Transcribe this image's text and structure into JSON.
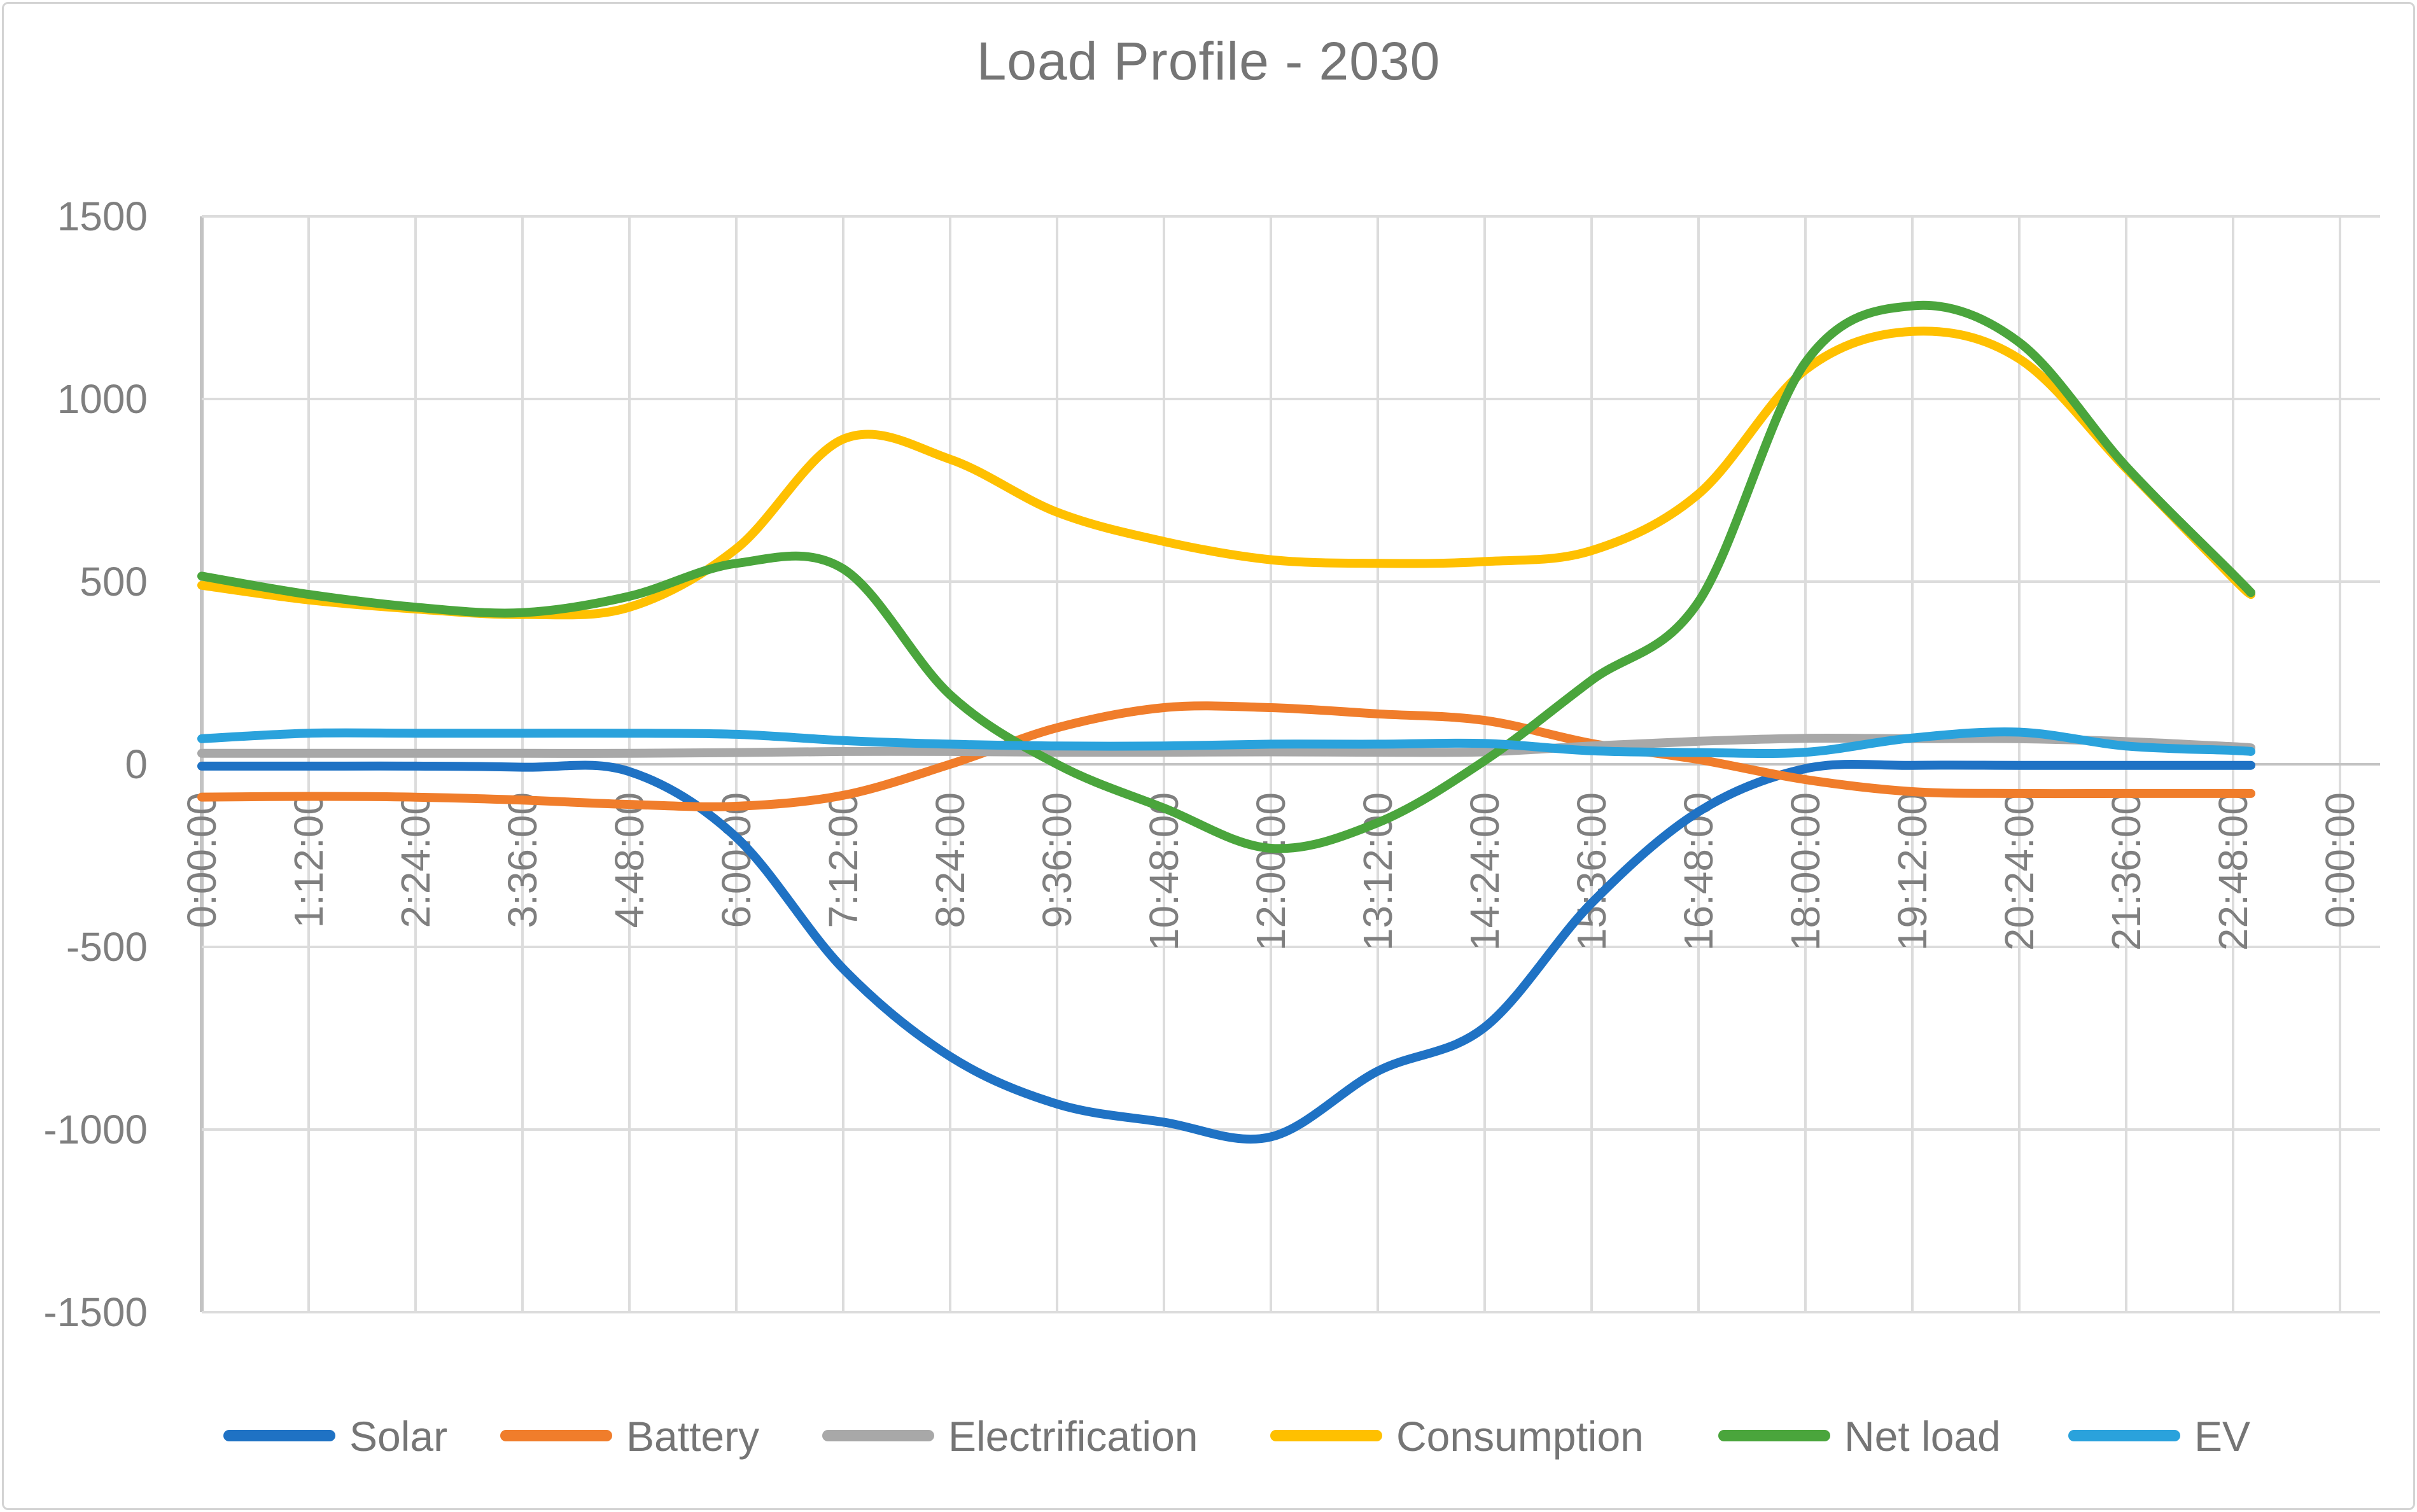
{
  "chart_data": {
    "type": "line",
    "title": "Load Profile - 2030",
    "xlabel": "",
    "ylabel": "",
    "ylim": [
      -1500,
      1500
    ],
    "ytick_interval": 500,
    "ytick_labels": [
      "1500",
      "1000",
      "500",
      "0",
      "-500",
      "-1000",
      "-1500"
    ],
    "grid": "on",
    "legend_position": "bottom",
    "x_tick_labels_rotation_deg": 90,
    "categories": [
      "0:00:00",
      "1:12:00",
      "2:24:00",
      "3:36:00",
      "4:48:00",
      "6:00:00",
      "7:12:00",
      "8:24:00",
      "9:36:00",
      "10:48:00",
      "12:00:00",
      "13:12:00",
      "14:24:00",
      "15:36:00",
      "16:48:00",
      "18:00:00",
      "19:12:00",
      "20:24:00",
      "21:36:00",
      "22:48:00",
      "0:00:00"
    ],
    "sample_hours": [
      0,
      1.2,
      2.4,
      3.6,
      4.8,
      6,
      7.2,
      8.4,
      9.6,
      10.8,
      12,
      13.2,
      14.4,
      15.6,
      16.8,
      18,
      19.2,
      20.4,
      21.6,
      22.8,
      23
    ],
    "series": [
      {
        "name": "Solar",
        "color": "#1f72c4",
        "values": [
          -5,
          -5,
          -5,
          -8,
          -20,
          -200,
          -560,
          -800,
          -930,
          -980,
          -1020,
          -840,
          -720,
          -380,
          -130,
          -12,
          -3,
          -3,
          -3,
          -3,
          -3
        ]
      },
      {
        "name": "Battery",
        "color": "#f07d2b",
        "values": [
          -90,
          -88,
          -90,
          -98,
          -110,
          -115,
          -85,
          0,
          100,
          155,
          155,
          138,
          120,
          57,
          13,
          -42,
          -75,
          -80,
          -80,
          -80,
          -80
        ]
      },
      {
        "name": "Electrification",
        "color": "#a8a8a8",
        "values": [
          30,
          30,
          30,
          30,
          30,
          32,
          35,
          35,
          33,
          33,
          34,
          33,
          34,
          50,
          63,
          71,
          70,
          70,
          62,
          48,
          45
        ]
      },
      {
        "name": "Consumption",
        "color": "#ffc000",
        "values": [
          490,
          450,
          425,
          410,
          430,
          590,
          890,
          835,
          690,
          610,
          560,
          550,
          555,
          585,
          740,
          1080,
          1185,
          1110,
          810,
          510,
          465
        ]
      },
      {
        "name": "Net load",
        "color": "#4aa53c",
        "values": [
          515,
          465,
          430,
          415,
          460,
          550,
          535,
          190,
          0,
          -120,
          -230,
          -160,
          10,
          230,
          445,
          1100,
          1255,
          1155,
          815,
          520,
          470
        ]
      },
      {
        "name": "EV",
        "color": "#2aa2dc",
        "values": [
          70,
          85,
          85,
          85,
          85,
          82,
          65,
          55,
          50,
          50,
          55,
          55,
          57,
          37,
          32,
          33,
          72,
          88,
          50,
          38,
          35
        ]
      }
    ],
    "axis_colors": {
      "gridline": "#dcdcdc",
      "axis_line": "#c3c3c3",
      "tick_text": "#7f7f7f",
      "title_text": "#757575"
    }
  }
}
